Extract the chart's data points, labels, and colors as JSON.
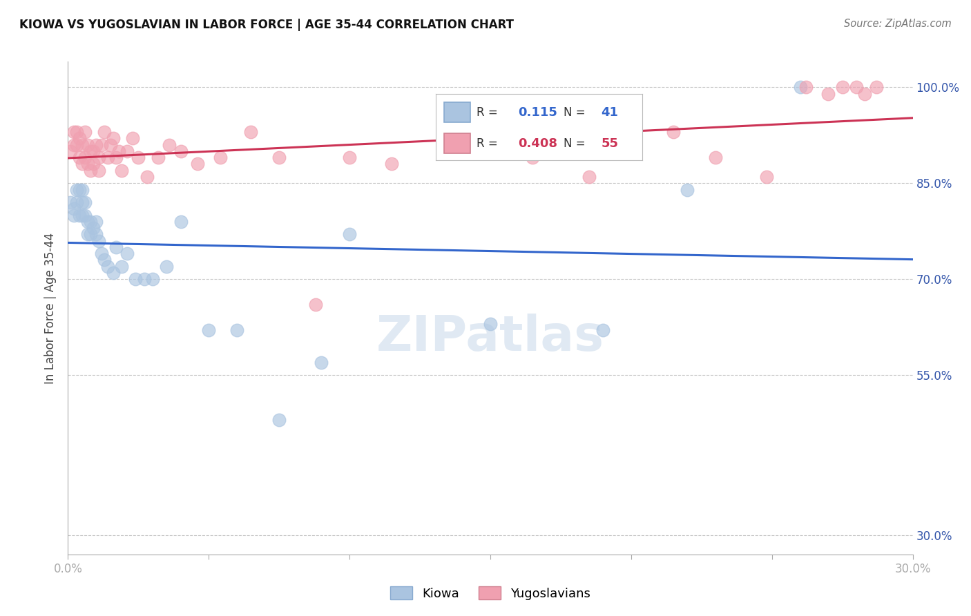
{
  "title": "KIOWA VS YUGOSLAVIAN IN LABOR FORCE | AGE 35-44 CORRELATION CHART",
  "source": "Source: ZipAtlas.com",
  "ylabel": "In Labor Force | Age 35-44",
  "legend_kiowa": "Kiowa",
  "legend_yugo": "Yugoslavians",
  "r_kiowa": 0.115,
  "n_kiowa": 41,
  "r_yugo": 0.408,
  "n_yugo": 55,
  "xlim": [
    0.0,
    0.3
  ],
  "ylim": [
    0.27,
    1.04
  ],
  "xticks": [
    0.0,
    0.05,
    0.1,
    0.15,
    0.2,
    0.25,
    0.3
  ],
  "xticklabels": [
    "0.0%",
    "",
    "",
    "",
    "",
    "",
    "30.0%"
  ],
  "ytick_positions": [
    0.3,
    0.55,
    0.7,
    0.85,
    1.0
  ],
  "ytick_labels": [
    "30.0%",
    "55.0%",
    "70.0%",
    "85.0%",
    "100.0%"
  ],
  "grid_color": "#c8c8c8",
  "kiowa_color": "#aac4e0",
  "yugo_color": "#f0a0b0",
  "kiowa_line_color": "#3366cc",
  "yugo_line_color": "#cc3355",
  "kiowa_x": [
    0.001,
    0.002,
    0.002,
    0.003,
    0.003,
    0.004,
    0.004,
    0.005,
    0.005,
    0.005,
    0.006,
    0.006,
    0.007,
    0.007,
    0.008,
    0.008,
    0.009,
    0.01,
    0.01,
    0.011,
    0.012,
    0.013,
    0.014,
    0.016,
    0.017,
    0.019,
    0.021,
    0.024,
    0.027,
    0.03,
    0.035,
    0.04,
    0.05,
    0.06,
    0.075,
    0.09,
    0.1,
    0.15,
    0.19,
    0.22,
    0.26
  ],
  "kiowa_y": [
    0.82,
    0.81,
    0.8,
    0.84,
    0.82,
    0.84,
    0.8,
    0.84,
    0.82,
    0.8,
    0.82,
    0.8,
    0.79,
    0.77,
    0.79,
    0.77,
    0.78,
    0.79,
    0.77,
    0.76,
    0.74,
    0.73,
    0.72,
    0.71,
    0.75,
    0.72,
    0.74,
    0.7,
    0.7,
    0.7,
    0.72,
    0.79,
    0.62,
    0.62,
    0.48,
    0.57,
    0.77,
    0.63,
    0.62,
    0.84,
    1.0
  ],
  "yugo_x": [
    0.001,
    0.002,
    0.002,
    0.003,
    0.003,
    0.004,
    0.004,
    0.005,
    0.005,
    0.006,
    0.006,
    0.007,
    0.007,
    0.008,
    0.008,
    0.009,
    0.009,
    0.01,
    0.011,
    0.011,
    0.012,
    0.013,
    0.014,
    0.015,
    0.016,
    0.017,
    0.018,
    0.019,
    0.021,
    0.023,
    0.025,
    0.028,
    0.032,
    0.036,
    0.04,
    0.046,
    0.054,
    0.065,
    0.075,
    0.088,
    0.1,
    0.115,
    0.14,
    0.165,
    0.185,
    0.2,
    0.215,
    0.23,
    0.248,
    0.262,
    0.27,
    0.275,
    0.28,
    0.283,
    0.287
  ],
  "yugo_y": [
    0.9,
    0.93,
    0.91,
    0.93,
    0.91,
    0.92,
    0.89,
    0.91,
    0.88,
    0.93,
    0.89,
    0.91,
    0.88,
    0.9,
    0.87,
    0.9,
    0.88,
    0.91,
    0.89,
    0.87,
    0.91,
    0.93,
    0.89,
    0.91,
    0.92,
    0.89,
    0.9,
    0.87,
    0.9,
    0.92,
    0.89,
    0.86,
    0.89,
    0.91,
    0.9,
    0.88,
    0.89,
    0.93,
    0.89,
    0.66,
    0.89,
    0.88,
    0.91,
    0.89,
    0.86,
    0.91,
    0.93,
    0.89,
    0.86,
    1.0,
    0.99,
    1.0,
    1.0,
    0.99,
    1.0
  ]
}
